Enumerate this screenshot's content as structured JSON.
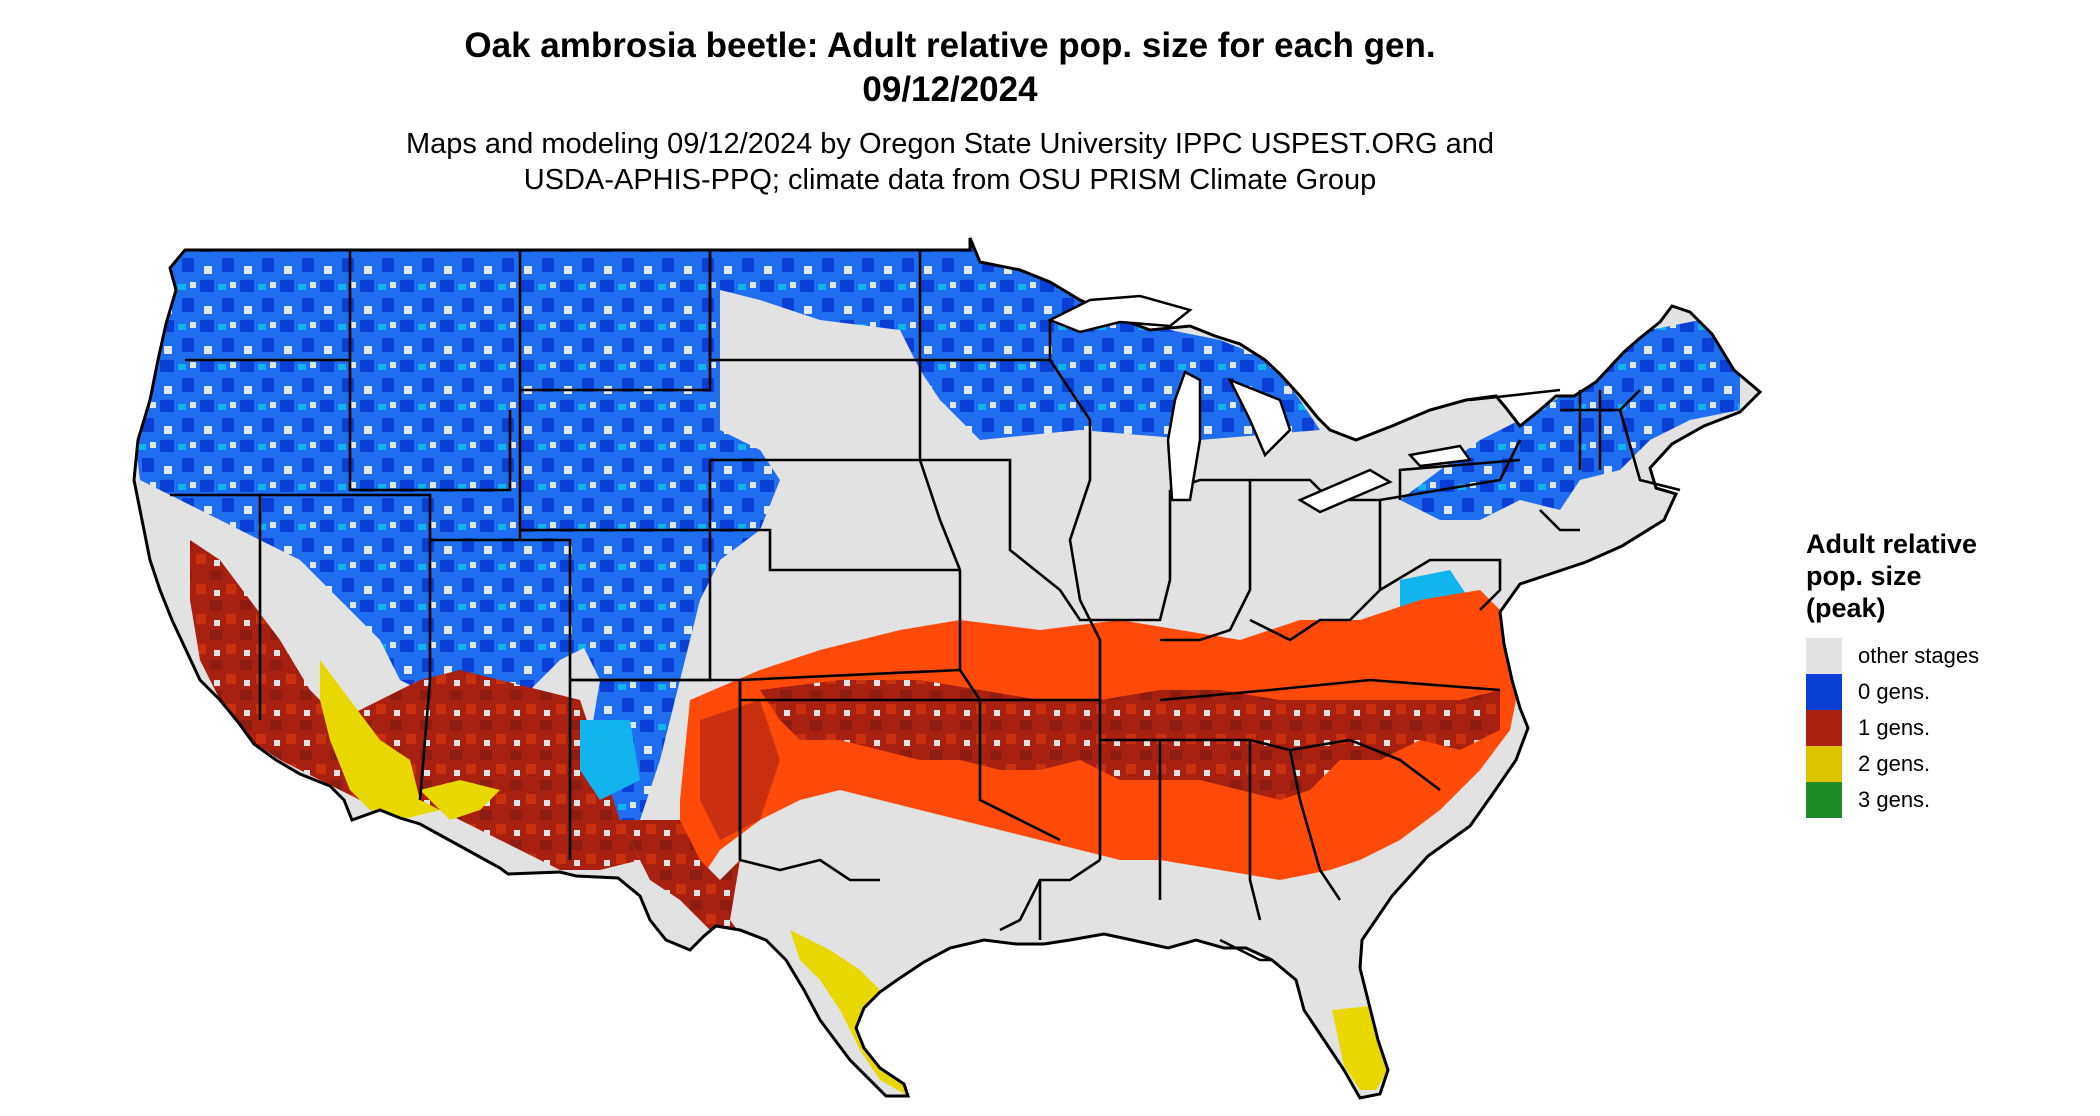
{
  "header": {
    "title_line1": "Oak ambrosia beetle: Adult relative pop. size for each gen.",
    "title_line2": "09/12/2024",
    "subtitle_line1": "Maps and modeling 09/12/2024 by Oregon State University IPPC USPEST.ORG and",
    "subtitle_line2": "USDA-APHIS-PPQ; climate data from OSU PRISM Climate Group"
  },
  "legend": {
    "title_line1": "Adult relative",
    "title_line2": "pop. size",
    "title_line3": "(peak)",
    "items": [
      {
        "label": "other stages",
        "color": "#e2e2e2"
      },
      {
        "label": "0 gens.",
        "color": "#0a3fd6"
      },
      {
        "label": "1 gens.",
        "color": "#a8200f"
      },
      {
        "label": "2 gens.",
        "color": "#dcc400"
      },
      {
        "label": "3 gens.",
        "color": "#1f8a28"
      }
    ]
  },
  "map": {
    "colors": {
      "other": "#e2e2e2",
      "cold_dark": "#0a3fd6",
      "cold_mid": "#1f6ef0",
      "cold_light": "#12b4f0",
      "warm_dark": "#8e1c10",
      "warm_mid": "#c8300f",
      "warm_orange": "#ff4a0a",
      "yellow": "#e9d800",
      "border": "#000000"
    }
  }
}
